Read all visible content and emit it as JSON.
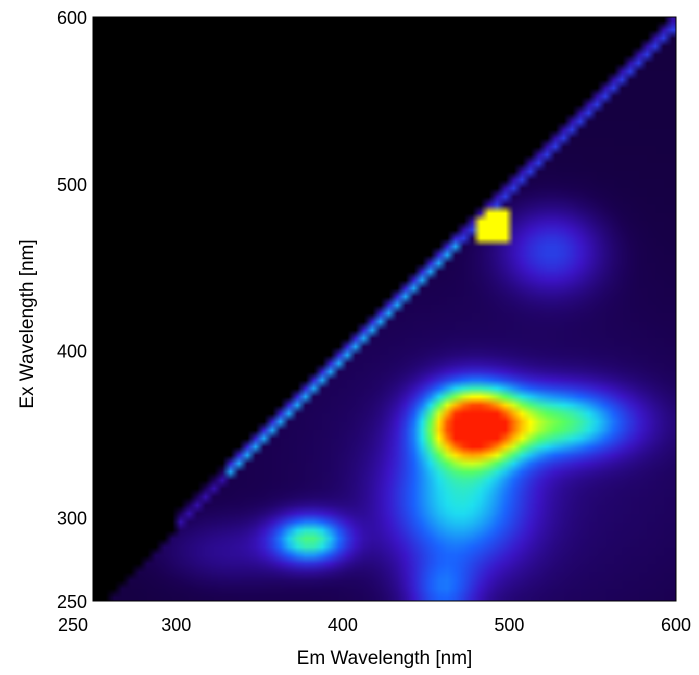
{
  "chart_data": {
    "type": "heatmap",
    "title": "",
    "xlabel": "Em Wavelength [nm]",
    "ylabel": "Ex Wavelength [nm]",
    "xlim": [
      250,
      600
    ],
    "ylim": [
      250,
      600
    ],
    "xticks": [
      "250",
      "300",
      "400",
      "500",
      "600"
    ],
    "yticks": [
      "250",
      "300",
      "400",
      "500",
      "600"
    ],
    "colormap": [
      "#000000",
      "#1a0050",
      "#3c14c8",
      "#1a64ff",
      "#1ee1f0",
      "#5aff5a",
      "#ffff00",
      "#ff8c00",
      "#ff1e00"
    ],
    "peaks": [
      {
        "em": 478,
        "ex": 356,
        "intensity": 1.0
      },
      {
        "em": 530,
        "ex": 357,
        "intensity": 0.55
      },
      {
        "em": 380,
        "ex": 287,
        "intensity": 0.5
      },
      {
        "em": 525,
        "ex": 460,
        "intensity": 0.25
      },
      {
        "em": 490,
        "ex": 475,
        "intensity": 0.75
      }
    ],
    "scatter_line": {
      "from": [
        360,
        360
      ],
      "to": [
        600,
        600
      ]
    }
  }
}
